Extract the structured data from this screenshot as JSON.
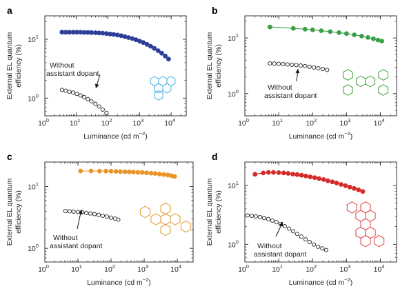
{
  "chart_data": [
    {
      "type": "scatter",
      "panel_label": "a",
      "xlabel": "Luminance (cd m",
      "xlabel_sup": "−2",
      "xlabel_close": ")",
      "ylabel_line1": "External EL quantum",
      "ylabel_line2": "efficiency (%)",
      "xscale": "log",
      "yscale": "log",
      "xlim": [
        1,
        30000
      ],
      "ylim": [
        0.5,
        25
      ],
      "xticks": [
        {
          "v": 1,
          "m": "10",
          "e": "0"
        },
        {
          "v": 10,
          "m": "10",
          "e": "1"
        },
        {
          "v": 100,
          "m": "10",
          "e": "2"
        },
        {
          "v": 1000,
          "m": "10",
          "e": "3"
        },
        {
          "v": 10000,
          "m": "10",
          "e": "4"
        }
      ],
      "yticks": [
        {
          "v": 1,
          "m": "10",
          "e": "0"
        },
        {
          "v": 10,
          "m": "10",
          "e": "1"
        }
      ],
      "annotation_line1": "Without",
      "annotation_line2": "assistant dopant",
      "molecule_color": "#4fb6e6",
      "series": [
        {
          "color": "#2e3f9a",
          "filled": true,
          "connect": false,
          "x": [
            3.5,
            4.6,
            6.0,
            7.9,
            10.3,
            13.5,
            17.7,
            23,
            30,
            40,
            52,
            68,
            89,
            117,
            153,
            200,
            262,
            343,
            449,
            587,
            768,
            1005,
            1315,
            1720,
            2250,
            2944,
            3851,
            5000,
            6500,
            8300
          ],
          "y": [
            13.2,
            13.2,
            13.2,
            13.2,
            13.2,
            13.2,
            13.1,
            13.1,
            13.0,
            12.9,
            12.8,
            12.7,
            12.5,
            12.3,
            12.1,
            11.8,
            11.5,
            11.1,
            10.7,
            10.3,
            9.8,
            9.3,
            8.8,
            8.2,
            7.6,
            7.0,
            6.4,
            5.8,
            5.2,
            4.6
          ]
        },
        {
          "color": "#222222",
          "filled": false,
          "connect": false,
          "x": [
            3.5,
            4.6,
            6.0,
            7.9,
            10.3,
            13.5,
            17.7,
            23,
            30,
            40,
            52,
            68,
            89
          ],
          "y": [
            1.38,
            1.34,
            1.29,
            1.24,
            1.18,
            1.11,
            1.04,
            0.96,
            0.88,
            0.8,
            0.72,
            0.64,
            0.56
          ]
        }
      ]
    },
    {
      "type": "line",
      "panel_label": "b",
      "xlabel": "Luminance (cd m",
      "xlabel_sup": "−2",
      "xlabel_close": ")",
      "ylabel_line1": "External EL quantum",
      "ylabel_line2": "efficiency (%)",
      "xscale": "log",
      "yscale": "log",
      "xlim": [
        1,
        30000
      ],
      "ylim": [
        0.4,
        25
      ],
      "xticks": [
        {
          "v": 1,
          "m": "10",
          "e": "0"
        },
        {
          "v": 10,
          "m": "10",
          "e": "1"
        },
        {
          "v": 100,
          "m": "10",
          "e": "2"
        },
        {
          "v": 1000,
          "m": "10",
          "e": "3"
        },
        {
          "v": 10000,
          "m": "10",
          "e": "4"
        }
      ],
      "yticks": [
        {
          "v": 1,
          "m": "10",
          "e": "0"
        },
        {
          "v": 10,
          "m": "10",
          "e": "1"
        }
      ],
      "annotation_line1": "Without",
      "annotation_line2": "assistant dopant",
      "molecule_color": "#4ea84a",
      "series": [
        {
          "color": "#3aa048",
          "filled": true,
          "connect": true,
          "x": [
            5.5,
            27,
            60,
            100,
            180,
            330,
            600,
            1000,
            1700,
            2800,
            4300,
            6200,
            8500,
            11000
          ],
          "y": [
            15.8,
            14.9,
            14.4,
            14.0,
            13.5,
            13.0,
            12.5,
            12.0,
            11.4,
            10.8,
            10.2,
            9.7,
            9.2,
            8.8
          ]
        },
        {
          "color": "#222222",
          "filled": false,
          "connect": false,
          "x": [
            5.5,
            7.4,
            10,
            13.5,
            18.2,
            24.5,
            33,
            44.5,
            60,
            81,
            109,
            147,
            199,
            268
          ],
          "y": [
            3.5,
            3.47,
            3.44,
            3.4,
            3.36,
            3.31,
            3.26,
            3.2,
            3.13,
            3.05,
            2.96,
            2.87,
            2.77,
            2.67
          ]
        }
      ]
    },
    {
      "type": "line",
      "panel_label": "c",
      "xlabel": "Luminance (cd m",
      "xlabel_sup": "−2",
      "xlabel_close": ")",
      "ylabel_line1": "External EL quantum",
      "ylabel_line2": "efficiency (%)",
      "xscale": "log",
      "yscale": "log",
      "xlim": [
        1,
        30000
      ],
      "ylim": [
        0.6,
        25
      ],
      "xticks": [
        {
          "v": 1,
          "m": "10",
          "e": "0"
        },
        {
          "v": 10,
          "m": "10",
          "e": "1"
        },
        {
          "v": 100,
          "m": "10",
          "e": "2"
        },
        {
          "v": 1000,
          "m": "10",
          "e": "3"
        },
        {
          "v": 10000,
          "m": "10",
          "e": "4"
        }
      ],
      "yticks": [
        {
          "v": 1,
          "m": "10",
          "e": "0"
        },
        {
          "v": 10,
          "m": "10",
          "e": "1"
        }
      ],
      "annotation_line1": "Without",
      "annotation_line2": "assistant dopant",
      "molecule_color": "#e0a040",
      "series": [
        {
          "color": "#e8962a",
          "filled": true,
          "connect": true,
          "x": [
            12,
            25,
            45,
            70,
            100,
            140,
            190,
            260,
            350,
            470,
            640,
            870,
            1180,
            1600,
            2150,
            2900,
            3900,
            5200,
            6700,
            8300
          ],
          "y": [
            17.9,
            17.9,
            17.8,
            17.8,
            17.7,
            17.6,
            17.5,
            17.4,
            17.3,
            17.2,
            17.0,
            16.9,
            16.7,
            16.5,
            16.3,
            16.0,
            15.7,
            15.4,
            15.0,
            14.6
          ]
        },
        {
          "color": "#222222",
          "filled": false,
          "connect": false,
          "x": [
            4.2,
            5.6,
            7.4,
            10,
            13.3,
            17.8,
            23.7,
            31.6,
            42,
            56,
            75,
            100,
            133,
            165
          ],
          "y": [
            4.0,
            3.97,
            3.93,
            3.88,
            3.82,
            3.75,
            3.67,
            3.58,
            3.48,
            3.37,
            3.26,
            3.14,
            3.03,
            2.92
          ]
        }
      ]
    },
    {
      "type": "line",
      "panel_label": "d",
      "xlabel": "Luminance (cd m",
      "xlabel_sup": "−2",
      "xlabel_close": ")",
      "ylabel_line1": "External EL quantum",
      "ylabel_line2": "efficiency (%)",
      "xscale": "log",
      "yscale": "log",
      "xlim": [
        1,
        30000
      ],
      "ylim": [
        0.5,
        25
      ],
      "xticks": [
        {
          "v": 1,
          "m": "10",
          "e": "0"
        },
        {
          "v": 10,
          "m": "10",
          "e": "1"
        },
        {
          "v": 100,
          "m": "10",
          "e": "2"
        },
        {
          "v": 1000,
          "m": "10",
          "e": "3"
        },
        {
          "v": 10000,
          "m": "10",
          "e": "4"
        }
      ],
      "yticks": [
        {
          "v": 1,
          "m": "10",
          "e": "0"
        },
        {
          "v": 10,
          "m": "10",
          "e": "1"
        }
      ],
      "annotation_line1": "Without",
      "annotation_line2": "assistant dopant",
      "molecule_color": "#e05050",
      "series": [
        {
          "color": "#d42b2b",
          "filled": true,
          "connect": true,
          "x": [
            2,
            3.5,
            5,
            7,
            10,
            14,
            19,
            26,
            35,
            47,
            63,
            85,
            115,
            155,
            210,
            280,
            380,
            510,
            690,
            930,
            1250,
            1680,
            2270,
            3000
          ],
          "y": [
            15.5,
            16.3,
            16.7,
            16.7,
            16.5,
            16.3,
            16.0,
            15.6,
            15.3,
            14.9,
            14.5,
            14.0,
            13.6,
            13.1,
            12.6,
            12.0,
            11.5,
            11.0,
            10.4,
            9.9,
            9.4,
            8.9,
            8.4,
            7.9
          ]
        },
        {
          "color": "#222222",
          "filled": false,
          "connect": false,
          "x": [
            1.2,
            1.6,
            2.1,
            2.8,
            3.7,
            4.9,
            6.5,
            8.6,
            11.4,
            15.1,
            20,
            26.5,
            35,
            46.5,
            62,
            82,
            109,
            145,
            192,
            250
          ],
          "y": [
            3.1,
            3.05,
            2.98,
            2.9,
            2.8,
            2.68,
            2.54,
            2.38,
            2.21,
            2.03,
            1.85,
            1.67,
            1.5,
            1.35,
            1.21,
            1.09,
            0.99,
            0.91,
            0.85,
            0.8
          ]
        }
      ]
    }
  ]
}
